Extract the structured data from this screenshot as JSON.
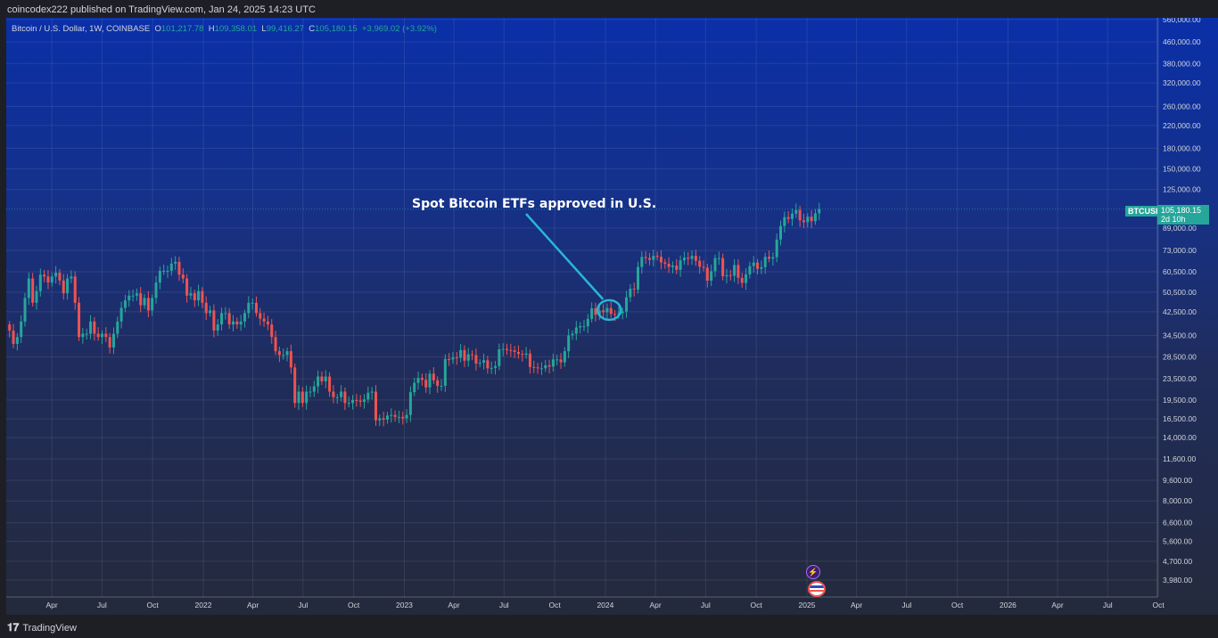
{
  "header": {
    "published": "coincodex222 published on TradingView.com, Jan 24, 2025 14:23 UTC"
  },
  "legend": {
    "symbol": "Bitcoin / U.S. Dollar, 1W, COINBASE",
    "o_label": "O",
    "o": "101,217.78",
    "h_label": "H",
    "h": "109,358.01",
    "l_label": "L",
    "l": "99,416.27",
    "c_label": "C",
    "c": "105,180.15",
    "change": "+3,969.02 (+3.92%)"
  },
  "price_tag": {
    "symbol": "BTCUSD",
    "price": "105,180.15",
    "countdown": "2d 10h"
  },
  "footer": {
    "brand": "TradingView"
  },
  "colors": {
    "up": "#26a69a",
    "down": "#ef5350",
    "annotation": "#29b6d6"
  },
  "chart_data": {
    "type": "candlestick",
    "scale": "log",
    "grid": true,
    "ylim": [
      3980,
      560000
    ],
    "y_ticks": [
      "560,000.00",
      "460,000.00",
      "380,000.00",
      "320,000.00",
      "260,000.00",
      "220,000.00",
      "180,000.00",
      "150,000.00",
      "125,000.00",
      "89,000.00",
      "73,000.00",
      "60,500.00",
      "50,500.00",
      "42,500.00",
      "34,500.00",
      "28,500.00",
      "23,500.00",
      "19,500.00",
      "16,500.00",
      "14,000.00",
      "11,600.00",
      "9,600.00",
      "8,000.00",
      "6,600.00",
      "5,600.00",
      "4,700.00",
      "3,980.00"
    ],
    "x_ticks": [
      "Apr",
      "Jul",
      "Oct",
      "2022",
      "Apr",
      "Jul",
      "Oct",
      "2023",
      "Apr",
      "Jul",
      "Oct",
      "2024",
      "Apr",
      "Jul",
      "Oct",
      "2025",
      "Apr",
      "Jul",
      "Oct",
      "2026",
      "Apr",
      "Jul",
      "Oct"
    ],
    "x_tick_dates": [
      "2021-04-01",
      "2021-07-01",
      "2021-10-01",
      "2022-01-01",
      "2022-04-01",
      "2022-07-01",
      "2022-10-01",
      "2023-01-01",
      "2023-04-01",
      "2023-07-01",
      "2023-10-01",
      "2024-01-01",
      "2024-04-01",
      "2024-07-01",
      "2024-10-01",
      "2025-01-01",
      "2025-04-01",
      "2025-07-01",
      "2025-10-01",
      "2026-01-01",
      "2026-04-01",
      "2026-07-01",
      "2026-10-01"
    ],
    "interval": "1W",
    "first_week": "2021-01-11",
    "first_open": 38000,
    "weekly_close": [
      36000,
      32000,
      34000,
      39000,
      48000,
      57000,
      46000,
      51000,
      59000,
      58000,
      55000,
      58000,
      60000,
      56000,
      50000,
      57000,
      58000,
      46000,
      34000,
      35000,
      35000,
      39000,
      35000,
      34000,
      35000,
      34000,
      31000,
      35000,
      39000,
      44000,
      47000,
      49000,
      49000,
      50000,
      45000,
      48000,
      43000,
      48000,
      55000,
      61000,
      61000,
      61000,
      65000,
      66000,
      59000,
      57000,
      49000,
      50000,
      47000,
      51000,
      46000,
      42000,
      43000,
      36000,
      38000,
      42000,
      42000,
      38000,
      39000,
      38000,
      39000,
      42000,
      46000,
      46000,
      42000,
      40000,
      39000,
      38000,
      34000,
      30000,
      29000,
      29000,
      30000,
      26000,
      19000,
      21000,
      19000,
      21000,
      21000,
      22000,
      24000,
      23000,
      24000,
      21000,
      20000,
      20000,
      21000,
      19000,
      19000,
      19500,
      19400,
      19200,
      19600,
      20800,
      21000,
      16300,
      16600,
      16400,
      17000,
      17100,
      16800,
      16800,
      16600,
      17100,
      20900,
      22700,
      23700,
      23300,
      21800,
      24600,
      23200,
      22100,
      22100,
      28000,
      27900,
      28400,
      28300,
      30300,
      27600,
      29200,
      29000,
      26900,
      27100,
      27700,
      25800,
      25900,
      26300,
      30500,
      30600,
      30300,
      30200,
      29800,
      29300,
      29100,
      29400,
      26100,
      26000,
      25800,
      25800,
      26500,
      26200,
      27900,
      27900,
      27200,
      30000,
      34500,
      35000,
      37000,
      37400,
      37400,
      39900,
      43800,
      41400,
      43000,
      42300,
      43900,
      41700,
      41600,
      42000,
      42600,
      48300,
      52100,
      51700,
      63100,
      68900,
      68300,
      67200,
      69600,
      69000,
      65700,
      64900,
      63100,
      63900,
      61500,
      66900,
      68500,
      67800,
      69600,
      66600,
      63200,
      62700,
      55900,
      60800,
      68200,
      68200,
      58100,
      58700,
      58400,
      64200,
      57300,
      54800,
      59100,
      63600,
      65600,
      62100,
      63000,
      69000,
      67900,
      68800,
      80400,
      90600,
      98000,
      96400,
      101000,
      104400,
      95200,
      93700,
      98300,
      94500,
      101300,
      105180.15
    ],
    "annotations": [
      {
        "text": "Spot Bitcoin ETFs approved in U.S.",
        "date": "2024-01-08"
      }
    ]
  }
}
